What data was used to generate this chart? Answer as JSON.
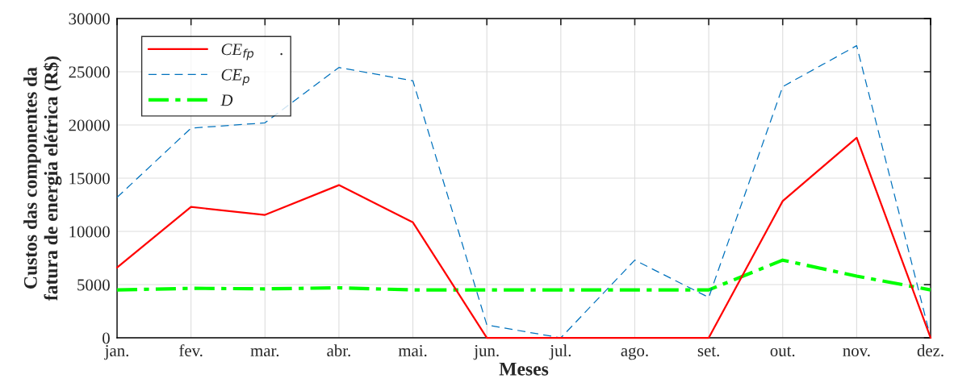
{
  "chart_data": {
    "type": "line",
    "xlabel": "Meses",
    "ylabel": "Custos das componentes da\nfatura de energia elétrica (R$)",
    "categories": [
      "jan.",
      "fev.",
      "mar.",
      "abr.",
      "mai.",
      "jun.",
      "jul.",
      "ago.",
      "set.",
      "out.",
      "nov.",
      "dez."
    ],
    "series": [
      {
        "name": "CE$_{fp}$      .",
        "color": "#ff0000",
        "line_style": "solid",
        "values": [
          6600,
          12300,
          11550,
          14350,
          10850,
          0,
          0,
          0,
          0,
          12850,
          18800,
          0
        ]
      },
      {
        "name": "CE$_{p}$",
        "color": "#0072bd",
        "line_style": "dashed",
        "values": [
          13200,
          19700,
          20200,
          25400,
          24150,
          1200,
          0,
          7300,
          3800,
          23600,
          27450,
          0
        ]
      },
      {
        "name": "D",
        "color": "#00ff00",
        "line_style": "dashdot",
        "values": [
          4500,
          4650,
          4600,
          4700,
          4500,
          4500,
          4500,
          4500,
          4500,
          7300,
          5800,
          4500
        ]
      }
    ],
    "ylim": [
      0,
      30000
    ],
    "yticks": [
      0,
      5000,
      10000,
      15000,
      20000,
      25000,
      30000
    ],
    "grid": true,
    "legend": "top left",
    "marker": "none"
  }
}
